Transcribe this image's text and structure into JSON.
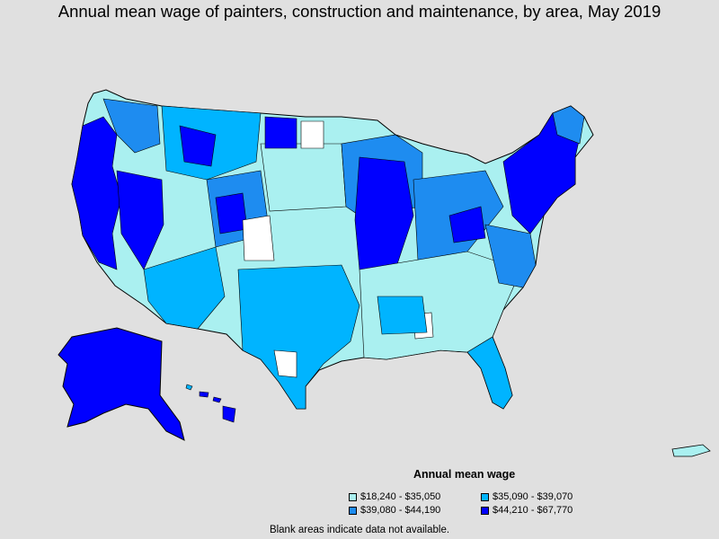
{
  "title": "Annual mean wage of painters, construction and maintenance, by area, May 2019",
  "legend": {
    "title": "Annual mean wage",
    "items": [
      {
        "label": "$18,240 - $35,050",
        "color": "#aaf0f0"
      },
      {
        "label": "$35,090 - $39,070",
        "color": "#00b4ff"
      },
      {
        "label": "$39,080 - $44,190",
        "color": "#1e8cf0"
      },
      {
        "label": "$44,210 - $67,770",
        "color": "#0000ff"
      }
    ]
  },
  "footnote": "Blank areas indicate data not available.",
  "colors": {
    "background": "#e0e0e0",
    "outline": "#000000",
    "blank": "#ffffff"
  }
}
